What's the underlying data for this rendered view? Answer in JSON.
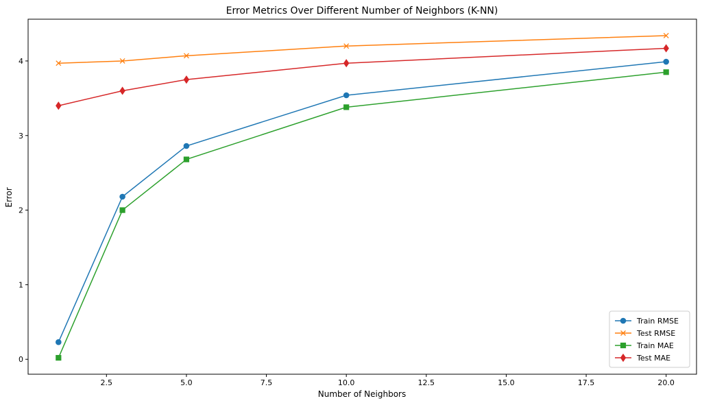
{
  "chart_data": {
    "type": "line",
    "title": "Error Metrics Over Different Number of Neighbors (K-NN)",
    "xlabel": "Number of Neighbors",
    "ylabel": "Error",
    "x": [
      1,
      3,
      5,
      10,
      20
    ],
    "xlim": [
      0.05,
      20.95
    ],
    "ylim": [
      -0.2,
      4.56
    ],
    "xticks": [
      2.5,
      5.0,
      7.5,
      10.0,
      12.5,
      15.0,
      17.5,
      20.0
    ],
    "xtick_labels": [
      "2.5",
      "5.0",
      "7.5",
      "10.0",
      "12.5",
      "15.0",
      "17.5",
      "20.0"
    ],
    "yticks": [
      0,
      1,
      2,
      3,
      4
    ],
    "ytick_labels": [
      "0",
      "1",
      "2",
      "3",
      "4"
    ],
    "grid": false,
    "legend_position": "bottom-right",
    "series": [
      {
        "name": "Train RMSE",
        "values": [
          0.23,
          2.18,
          2.86,
          3.54,
          3.99
        ],
        "color": "#1f77b4",
        "marker": "circle"
      },
      {
        "name": "Test RMSE",
        "values": [
          3.97,
          4.0,
          4.07,
          4.2,
          4.34
        ],
        "color": "#ff7f0e",
        "marker": "x"
      },
      {
        "name": "Train MAE",
        "values": [
          0.02,
          2.0,
          2.68,
          3.38,
          3.85
        ],
        "color": "#2ca02c",
        "marker": "square"
      },
      {
        "name": "Test MAE",
        "values": [
          3.4,
          3.6,
          3.75,
          3.97,
          4.17
        ],
        "color": "#d62728",
        "marker": "diamond"
      }
    ]
  }
}
